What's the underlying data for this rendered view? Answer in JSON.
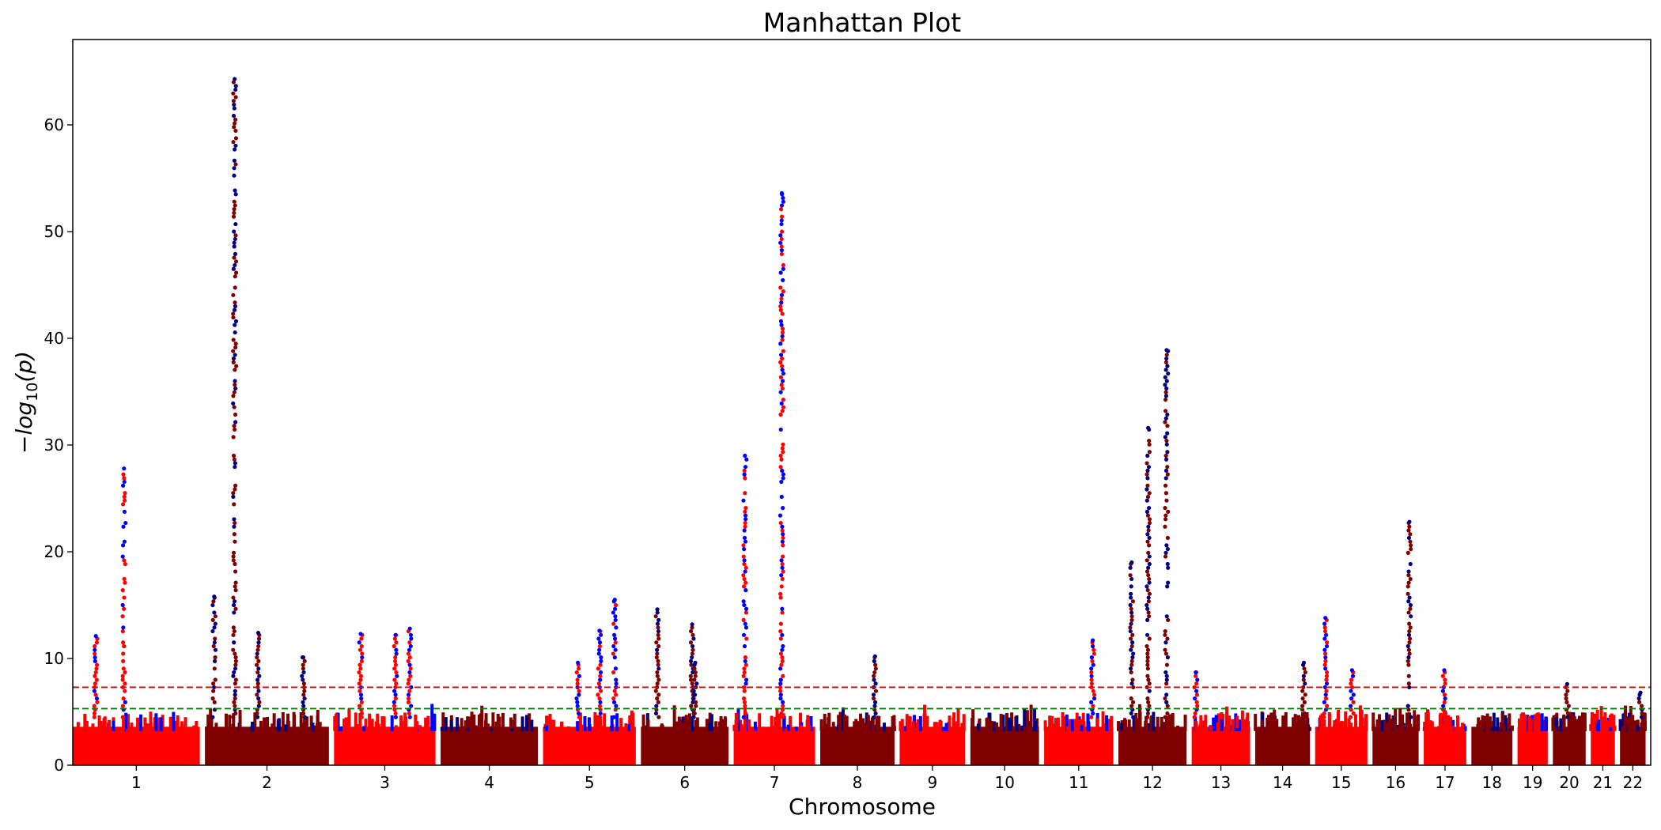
{
  "chart_data": {
    "type": "scatter",
    "title": "Manhattan Plot",
    "xlabel": "Chromosome",
    "ylabel_base": "−log",
    "ylabel_sub": "10",
    "ylabel_arg": "(p)",
    "ylim": [
      0,
      68
    ],
    "yticks": [
      0,
      10,
      20,
      30,
      40,
      50,
      60
    ],
    "x_range": [
      0,
      2870
    ],
    "grid": false,
    "legend": "none",
    "thresholds": [
      {
        "value": 7.3,
        "color": "#e00000",
        "style": "dashed"
      },
      {
        "value": 5.3,
        "color": "#008000",
        "style": "dashed"
      }
    ],
    "colors": {
      "bright_a": "#ff0000",
      "bright_b": "#0000ff",
      "dark_a": "#800000",
      "dark_b": "#000080"
    },
    "chromosomes": [
      {
        "label": "1",
        "start": 0,
        "end": 248,
        "palette": "bright"
      },
      {
        "label": "2",
        "start": 258,
        "end": 500,
        "palette": "dark"
      },
      {
        "label": "3",
        "start": 510,
        "end": 708,
        "palette": "bright"
      },
      {
        "label": "4",
        "start": 718,
        "end": 908,
        "palette": "dark"
      },
      {
        "label": "5",
        "start": 918,
        "end": 1099,
        "palette": "bright"
      },
      {
        "label": "6",
        "start": 1109,
        "end": 1280,
        "palette": "dark"
      },
      {
        "label": "7",
        "start": 1290,
        "end": 1449,
        "palette": "bright"
      },
      {
        "label": "8",
        "start": 1459,
        "end": 1604,
        "palette": "dark"
      },
      {
        "label": "9",
        "start": 1614,
        "end": 1742,
        "palette": "bright"
      },
      {
        "label": "10",
        "start": 1752,
        "end": 1886,
        "palette": "dark"
      },
      {
        "label": "11",
        "start": 1896,
        "end": 2031,
        "palette": "bright"
      },
      {
        "label": "12",
        "start": 2041,
        "end": 2174,
        "palette": "dark"
      },
      {
        "label": "13",
        "start": 2184,
        "end": 2298,
        "palette": "bright"
      },
      {
        "label": "14",
        "start": 2308,
        "end": 2415,
        "palette": "dark"
      },
      {
        "label": "15",
        "start": 2425,
        "end": 2527,
        "palette": "bright"
      },
      {
        "label": "16",
        "start": 2537,
        "end": 2627,
        "palette": "dark"
      },
      {
        "label": "17",
        "start": 2637,
        "end": 2720,
        "palette": "bright"
      },
      {
        "label": "18",
        "start": 2730,
        "end": 2810,
        "palette": "dark"
      },
      {
        "label": "19",
        "start": 2820,
        "end": 2879,
        "palette": "bright"
      },
      {
        "label": "20",
        "start": 2889,
        "end": 2953,
        "palette": "dark"
      },
      {
        "label": "21",
        "start": 2963,
        "end": 3010,
        "palette": "bright"
      },
      {
        "label": "22",
        "start": 3020,
        "end": 3070,
        "palette": "dark"
      }
    ],
    "peaks": [
      {
        "chrom": "1",
        "pos": 100,
        "top": 27.8
      },
      {
        "chrom": "1",
        "pos": 45,
        "top": 12.1
      },
      {
        "chrom": "2",
        "pos": 58,
        "top": 64.3
      },
      {
        "chrom": "2",
        "pos": 18,
        "top": 15.8
      },
      {
        "chrom": "2",
        "pos": 104,
        "top": 12.4
      },
      {
        "chrom": "2",
        "pos": 192,
        "top": 10.1
      },
      {
        "chrom": "3",
        "pos": 52,
        "top": 12.3
      },
      {
        "chrom": "3",
        "pos": 120,
        "top": 12.2
      },
      {
        "chrom": "3",
        "pos": 148,
        "top": 12.8
      },
      {
        "chrom": "5",
        "pos": 68,
        "top": 9.6
      },
      {
        "chrom": "5",
        "pos": 110,
        "top": 12.6
      },
      {
        "chrom": "5",
        "pos": 140,
        "top": 15.5
      },
      {
        "chrom": "6",
        "pos": 32,
        "top": 14.6
      },
      {
        "chrom": "6",
        "pos": 100,
        "top": 13.2
      },
      {
        "chrom": "6",
        "pos": 106,
        "top": 9.6
      },
      {
        "chrom": "7",
        "pos": 22,
        "top": 29.0
      },
      {
        "chrom": "7",
        "pos": 94,
        "top": 53.6
      },
      {
        "chrom": "8",
        "pos": 107,
        "top": 10.2
      },
      {
        "chrom": "11",
        "pos": 95,
        "top": 11.7
      },
      {
        "chrom": "12",
        "pos": 26,
        "top": 19.0
      },
      {
        "chrom": "12",
        "pos": 58,
        "top": 31.6
      },
      {
        "chrom": "12",
        "pos": 94,
        "top": 38.9
      },
      {
        "chrom": "13",
        "pos": 8,
        "top": 8.7
      },
      {
        "chrom": "14",
        "pos": 95,
        "top": 9.6
      },
      {
        "chrom": "15",
        "pos": 20,
        "top": 13.8
      },
      {
        "chrom": "15",
        "pos": 72,
        "top": 8.9
      },
      {
        "chrom": "16",
        "pos": 72,
        "top": 22.8
      },
      {
        "chrom": "17",
        "pos": 40,
        "top": 8.9
      },
      {
        "chrom": "20",
        "pos": 28,
        "top": 7.6
      },
      {
        "chrom": "22",
        "pos": 40,
        "top": 6.8
      }
    ]
  }
}
